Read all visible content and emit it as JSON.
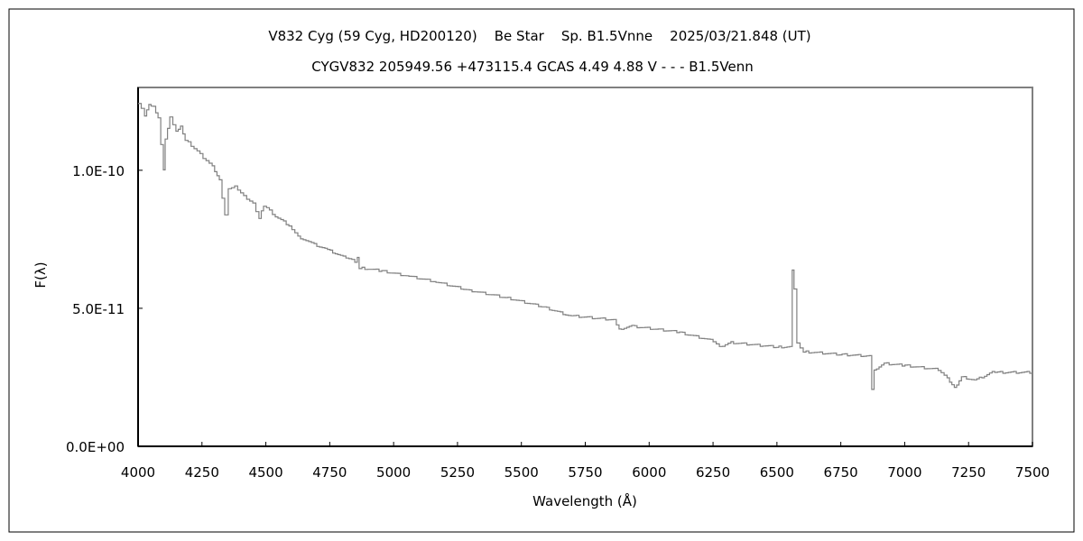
{
  "chart_data": {
    "type": "line",
    "title": "V832 Cyg (59 Cyg, HD200120)    Be Star    Sp. B1.5Vnne    2025/03/21.848 (UT)",
    "subtitle": "CYGV832 205949.56 +473115.4 GCAS 4.49 4.88 V - - - B1.5Venn",
    "xlabel": "Wavelength (Å)",
    "ylabel": "F(λ)",
    "xlim": [
      4000,
      7500
    ],
    "ylim": [
      0,
      1.3e-10
    ],
    "x_ticks": [
      4000,
      4250,
      4500,
      4750,
      5000,
      5250,
      5500,
      5750,
      6000,
      6250,
      6500,
      6750,
      7000,
      7250,
      7500
    ],
    "x_tick_labels": [
      "4000",
      "4250",
      "4500",
      "4750",
      "5000",
      "5250",
      "5500",
      "5750",
      "6000",
      "6250",
      "6500",
      "6750",
      "7000",
      "7250",
      "7500"
    ],
    "y_ticks": [
      0,
      5e-11,
      1e-10
    ],
    "y_tick_labels": [
      "0.0E+00",
      "5.0E-11",
      "1.0E-10"
    ],
    "grid": false,
    "line_color": "#808080",
    "series": [
      {
        "x": [
          4000,
          4025,
          4042,
          4060,
          4078,
          4099,
          4106,
          4124,
          4148,
          4166,
          4184,
          4219,
          4254,
          4290,
          4318,
          4339,
          4353,
          4378,
          4413,
          4449,
          4473,
          4491,
          4537,
          4590,
          4625,
          4678,
          4731,
          4802,
          4848,
          4858,
          4865,
          4943,
          5049,
          5155,
          5296,
          5437,
          5578,
          5684,
          5861,
          5882,
          5932,
          6108,
          6250,
          6275,
          6320,
          6497,
          6550,
          6560,
          6567,
          6578,
          6603,
          6744,
          6861,
          6871,
          6880,
          6919,
          6990,
          7131,
          7166,
          7194,
          7222,
          7272,
          7342,
          7500
        ],
        "y": [
          1.242e-10,
          1.2e-10,
          1.235e-10,
          1.23e-10,
          1.19e-10,
          1.003e-10,
          1.11e-10,
          1.19e-10,
          1.14e-10,
          1.16e-10,
          1.11e-10,
          1.08e-10,
          1.046e-10,
          1.013e-10,
          9.64e-11,
          8.4e-11,
          9.3e-11,
          9.4e-11,
          9.05e-11,
          8.8e-11,
          8.27e-11,
          8.73e-11,
          8.33e-11,
          8e-11,
          7.6e-11,
          7.35e-11,
          7.16e-11,
          6.86e-11,
          6.7e-11,
          6.86e-11,
          6.47e-11,
          6.37e-11,
          6.18e-11,
          5.98e-11,
          5.65e-11,
          5.39e-11,
          5.07e-11,
          4.74e-11,
          4.58e-11,
          4.25e-11,
          4.35e-11,
          4.15e-11,
          3.82e-11,
          3.6e-11,
          3.76e-11,
          3.6e-11,
          3.6e-11,
          6.37e-11,
          5.7e-11,
          3.76e-11,
          3.43e-11,
          3.33e-11,
          3.27e-11,
          2.06e-11,
          2.78e-11,
          3e-11,
          2.94e-11,
          2.78e-11,
          2.45e-11,
          2.12e-11,
          2.52e-11,
          2.39e-11,
          2.68e-11,
          2.68e-11
        ]
      }
    ]
  }
}
